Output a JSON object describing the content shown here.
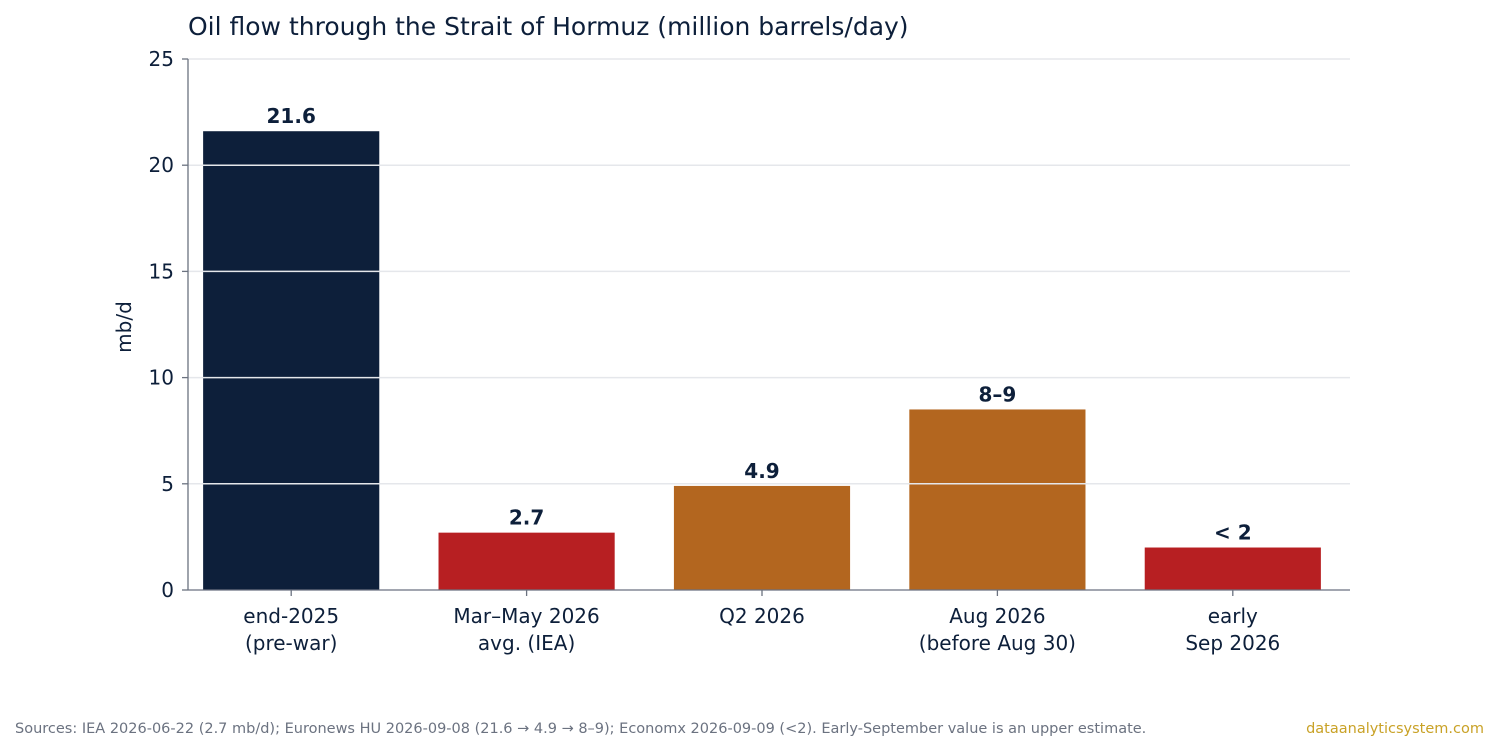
{
  "chart_data": {
    "type": "bar",
    "title": "Oil flow through the Strait of Hormuz (million barrels/day)",
    "xlabel": "",
    "ylabel": "mb/d",
    "ylim": [
      0,
      25
    ],
    "yticks": [
      "0",
      "5",
      "10",
      "15",
      "20",
      "25"
    ],
    "grid": "horizontal",
    "categories": [
      [
        "end-2025",
        "(pre-war)"
      ],
      [
        "Mar–May 2026",
        "avg. (IEA)"
      ],
      [
        "Q2 2026"
      ],
      [
        "Aug 2026",
        "(before Aug 30)"
      ],
      [
        "early",
        "Sep 2026"
      ]
    ],
    "values": [
      21.6,
      2.7,
      4.9,
      8.5,
      2.0
    ],
    "data_labels": [
      "21.6",
      "2.7",
      "4.9",
      "8–9",
      "< 2"
    ],
    "bar_colors": [
      "#0d1f3a",
      "#b71f22",
      "#b3661f",
      "#b3661f",
      "#b71f22"
    ]
  },
  "footer": {
    "sources": "Sources: IEA 2026-06-22 (2.7 mb/d); Euronews HU 2026-09-08 (21.6 → 4.9 → 8–9); Economx 2026-09-09 (<2). Early-September value is an upper estimate.",
    "brand": "dataanalyticsystem.com"
  },
  "colors": {
    "text": "#0d1f3a",
    "grid": "#e5e7eb",
    "axis": "#6b7280",
    "footer_text": "#6b7280",
    "brand": "#c9a227"
  }
}
